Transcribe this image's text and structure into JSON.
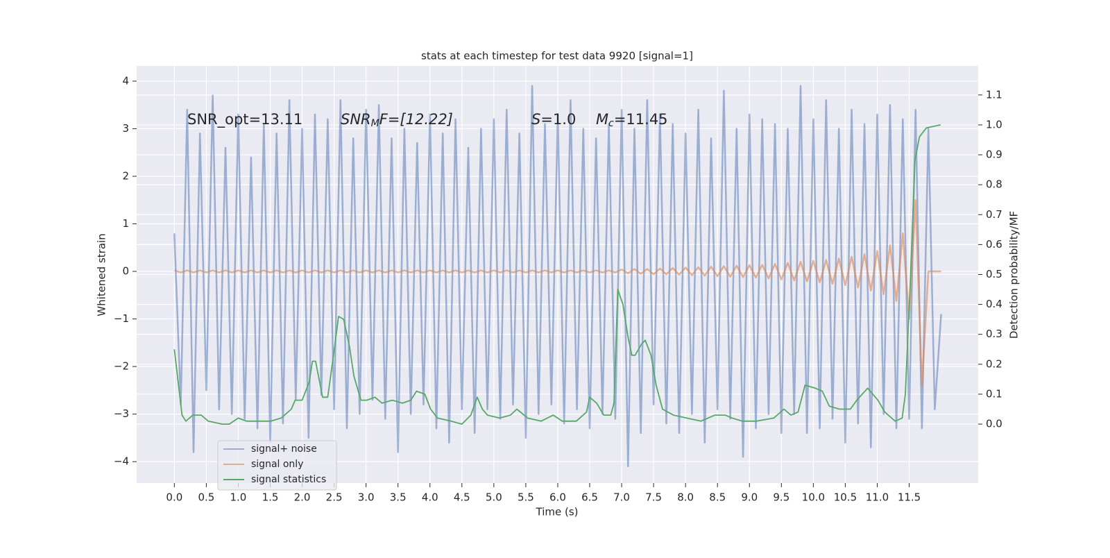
{
  "chart_data": {
    "type": "line",
    "title": "stats at each timestep for test data 9920 [signal=1]",
    "xlabel": "Time (s)",
    "ylabel": "Whitened strain",
    "y2label": "Detection probability/MF",
    "grid": true,
    "legend": "lower left",
    "xlim": [
      -0.59,
      12.58
    ],
    "ylim": [
      -4.45,
      4.32
    ],
    "y2lim": [
      -0.197,
      1.197
    ],
    "xticks": [
      {
        "value": 0,
        "label": "0.0"
      },
      0.5,
      {
        "value": 1,
        "label": "1.0"
      },
      1.5,
      {
        "value": 2,
        "label": "2.0"
      },
      2.5,
      {
        "value": 3,
        "label": "3.0"
      },
      3.5,
      {
        "value": 4,
        "label": "4.0"
      },
      4.5,
      {
        "value": 5,
        "label": "5.0"
      },
      5.5,
      {
        "value": 6,
        "label": "6.0"
      },
      6.5,
      {
        "value": 7,
        "label": "7.0"
      },
      7.5,
      {
        "value": 8,
        "label": "8.0"
      },
      8.5,
      {
        "value": 9,
        "label": "9.0"
      },
      9.5,
      {
        "value": 10,
        "label": "10.0"
      },
      10.5,
      {
        "value": 11,
        "label": "11.0"
      },
      11.5
    ],
    "yticks": [
      {
        "value": -4,
        "label": "−4"
      },
      {
        "value": -3,
        "label": "−3"
      },
      {
        "value": -2,
        "label": "−2"
      },
      {
        "value": -1,
        "label": "−1"
      },
      0,
      1,
      2,
      3,
      4
    ],
    "y2ticks": [
      {
        "value": 0,
        "label": "0.0"
      },
      0.1,
      0.2,
      0.3,
      0.4,
      0.5,
      0.6,
      0.7,
      0.8,
      0.9,
      {
        "value": 1,
        "label": "1.0"
      },
      1.1
    ],
    "annotations": [
      [
        {
          "text": "SNR_opt=13.11",
          "style": "normal"
        }
      ],
      [
        {
          "text": "SNR",
          "style": "italic"
        },
        {
          "text": "M",
          "style": "italic-sub"
        },
        {
          "text": "F=[12.22]",
          "style": "italic-first"
        }
      ],
      [
        {
          "text": "S",
          "style": "italic"
        },
        {
          "text": "=1.0",
          "style": "normal"
        }
      ],
      [
        {
          "text": "M",
          "style": "italic"
        },
        {
          "text": "c",
          "style": "italic-sub"
        },
        {
          "text": "=11.45",
          "style": "normal"
        }
      ]
    ],
    "x": [
      0,
      0.1,
      0.2,
      0.3,
      0.4,
      0.5,
      0.6,
      0.7,
      0.8,
      0.9,
      1,
      1.1,
      1.2,
      1.3,
      1.4,
      1.5,
      1.6,
      1.7,
      1.8,
      1.9,
      2,
      2.1,
      2.2,
      2.3,
      2.4,
      2.5,
      2.6,
      2.7,
      2.8,
      2.9,
      3,
      3.1,
      3.2,
      3.3,
      3.4,
      3.5,
      3.6,
      3.7,
      3.8,
      3.9,
      4,
      4.1,
      4.2,
      4.3,
      4.4,
      4.5,
      4.6,
      4.7,
      4.8,
      4.9,
      5,
      5.1,
      5.2,
      5.3,
      5.4,
      5.5,
      5.6,
      5.7,
      5.8,
      5.9,
      6,
      6.1,
      6.2,
      6.3,
      6.4,
      6.5,
      6.6,
      6.7,
      6.8,
      6.9,
      7,
      7.1,
      7.2,
      7.3,
      7.4,
      7.5,
      7.6,
      7.7,
      7.8,
      7.9,
      8,
      8.1,
      8.2,
      8.3,
      8.4,
      8.5,
      8.6,
      8.7,
      8.8,
      8.9,
      9,
      9.1,
      9.2,
      9.3,
      9.4,
      9.5,
      9.6,
      9.7,
      9.8,
      9.9,
      10,
      10.1,
      10.2,
      10.3,
      10.4,
      10.5,
      10.6,
      10.7,
      10.8,
      10.9,
      11,
      11.1,
      11.2,
      11.3,
      11.4,
      11.5,
      11.6,
      11.7,
      11.8,
      11.9,
      12
    ],
    "series": [
      {
        "name": "signal+ noise",
        "color": "#4c72b0",
        "opacity": 0.5,
        "values": [
          0.8,
          -2.8,
          3.4,
          -3.8,
          2.9,
          -2.5,
          3.7,
          -2.9,
          2.6,
          -3.0,
          3.3,
          -3.1,
          2.4,
          -3.3,
          3.1,
          -3.6,
          2.9,
          -3.2,
          3.6,
          -2.7,
          3.0,
          -3.5,
          3.3,
          -2.6,
          3.2,
          -2.9,
          3.6,
          -3.3,
          2.8,
          -3.0,
          3.4,
          -2.7,
          3.5,
          -3.1,
          2.8,
          -3.8,
          3.0,
          -3.0,
          2.7,
          -2.8,
          3.3,
          -3.3,
          2.9,
          -3.6,
          3.2,
          -2.9,
          2.6,
          -3.4,
          3.0,
          -2.9,
          3.2,
          -3.1,
          3.4,
          -2.8,
          2.9,
          -3.5,
          3.9,
          -3.0,
          3.1,
          -2.8,
          3.3,
          -3.2,
          3.6,
          -2.9,
          3.0,
          -3.3,
          2.8,
          -3.0,
          3.1,
          -3.1,
          3.4,
          -4.1,
          3.0,
          -3.4,
          3.6,
          -2.8,
          3.3,
          -3.2,
          3.1,
          -3.4,
          2.9,
          -3.0,
          3.4,
          -3.6,
          2.8,
          -2.9,
          3.8,
          -3.1,
          3.0,
          -3.9,
          3.3,
          -3.3,
          3.2,
          -3.0,
          3.1,
          -3.4,
          3.0,
          -3.0,
          3.9,
          -3.4,
          3.2,
          -3.3,
          3.6,
          -3.1,
          3.0,
          -3.6,
          3.4,
          -3.2,
          3.1,
          -3.7,
          3.3,
          -3.0,
          3.5,
          -3.3,
          3.2,
          -3.1,
          3.4,
          -3.3,
          3.0,
          -2.9,
          -0.9
        ]
      },
      {
        "name": "signal only",
        "color": "#dd8452",
        "opacity": 0.6,
        "values": [
          0.02,
          -0.02,
          0.02,
          -0.02,
          0.02,
          -0.02,
          0.02,
          -0.02,
          0.02,
          -0.02,
          0.02,
          -0.02,
          0.02,
          -0.02,
          0.02,
          -0.02,
          0.02,
          -0.02,
          0.02,
          -0.02,
          0.02,
          -0.02,
          0.02,
          -0.02,
          0.02,
          -0.02,
          0.02,
          -0.02,
          0.02,
          -0.02,
          0.02,
          -0.02,
          0.02,
          -0.02,
          0.02,
          -0.02,
          0.02,
          -0.02,
          0.02,
          -0.02,
          0.02,
          -0.02,
          0.02,
          -0.02,
          0.02,
          -0.02,
          0.02,
          -0.02,
          0.02,
          -0.02,
          0.02,
          -0.02,
          0.02,
          -0.02,
          0.02,
          -0.02,
          0.02,
          -0.02,
          0.02,
          -0.02,
          0.02,
          -0.02,
          0.02,
          -0.02,
          0.02,
          -0.02,
          0.02,
          -0.02,
          0.02,
          -0.02,
          0.04,
          -0.04,
          0.05,
          -0.05,
          0.05,
          -0.06,
          0.06,
          -0.06,
          0.07,
          -0.07,
          0.08,
          -0.08,
          0.09,
          -0.09,
          0.1,
          -0.1,
          0.11,
          -0.11,
          0.12,
          -0.12,
          0.13,
          -0.13,
          0.14,
          -0.15,
          0.16,
          -0.17,
          0.18,
          -0.19,
          0.2,
          -0.21,
          0.22,
          -0.23,
          0.24,
          -0.26,
          0.27,
          -0.29,
          0.31,
          -0.34,
          0.36,
          -0.4,
          0.43,
          -0.48,
          0.55,
          -0.62,
          0.8,
          -1.0,
          1.5,
          -2.4,
          0,
          0,
          0
        ]
      },
      {
        "name": "signal statistics",
        "color": "#55a868",
        "opacity": 1,
        "axis": "y2",
        "x": [
          0,
          0.12,
          0.18,
          0.29,
          0.42,
          0.53,
          0.75,
          0.86,
          1.0,
          1.13,
          1.29,
          1.51,
          1.67,
          1.83,
          1.89,
          2.0,
          2.11,
          2.16,
          2.21,
          2.32,
          2.4,
          2.49,
          2.57,
          2.65,
          2.74,
          2.81,
          2.92,
          3.01,
          3.14,
          3.25,
          3.41,
          3.57,
          3.7,
          3.79,
          3.92,
          4.01,
          4.12,
          4.33,
          4.5,
          4.64,
          4.74,
          4.82,
          4.9,
          5.09,
          5.26,
          5.36,
          5.53,
          5.74,
          5.93,
          6.07,
          6.29,
          6.45,
          6.5,
          6.61,
          6.72,
          6.83,
          6.88,
          6.94,
          7.02,
          7.1,
          7.16,
          7.21,
          7.32,
          7.37,
          7.46,
          7.54,
          7.64,
          7.81,
          8.02,
          8.24,
          8.46,
          8.62,
          8.73,
          8.89,
          9.11,
          9.38,
          9.54,
          9.65,
          9.76,
          9.87,
          10.03,
          10.14,
          10.25,
          10.41,
          10.58,
          10.68,
          10.85,
          11.01,
          11.12,
          11.28,
          11.39,
          11.44,
          11.52,
          11.59,
          11.66,
          11.77,
          11.99
        ],
        "values": [
          0.25,
          0.03,
          0.01,
          0.03,
          0.03,
          0.01,
          0,
          0,
          0.02,
          0.01,
          0.01,
          0.01,
          0.02,
          0.05,
          0.08,
          0.08,
          0.14,
          0.21,
          0.21,
          0.09,
          0.09,
          0.23,
          0.36,
          0.35,
          0.26,
          0.16,
          0.08,
          0.08,
          0.09,
          0.07,
          0.08,
          0.07,
          0.08,
          0.11,
          0.1,
          0.05,
          0.02,
          0.01,
          0,
          0.03,
          0.09,
          0.05,
          0.03,
          0.02,
          0.03,
          0.05,
          0.02,
          0.01,
          0.03,
          0.01,
          0.01,
          0.04,
          0.09,
          0.07,
          0.03,
          0.03,
          0.07,
          0.45,
          0.4,
          0.29,
          0.23,
          0.23,
          0.27,
          0.28,
          0.23,
          0.13,
          0.05,
          0.03,
          0.02,
          0.01,
          0.03,
          0.03,
          0.02,
          0.01,
          0.01,
          0.02,
          0.05,
          0.03,
          0.04,
          0.13,
          0.12,
          0.11,
          0.06,
          0.05,
          0.05,
          0.08,
          0.12,
          0.08,
          0.04,
          0.01,
          0.02,
          0.1,
          0.49,
          0.88,
          0.96,
          0.99,
          1.0
        ]
      }
    ]
  }
}
